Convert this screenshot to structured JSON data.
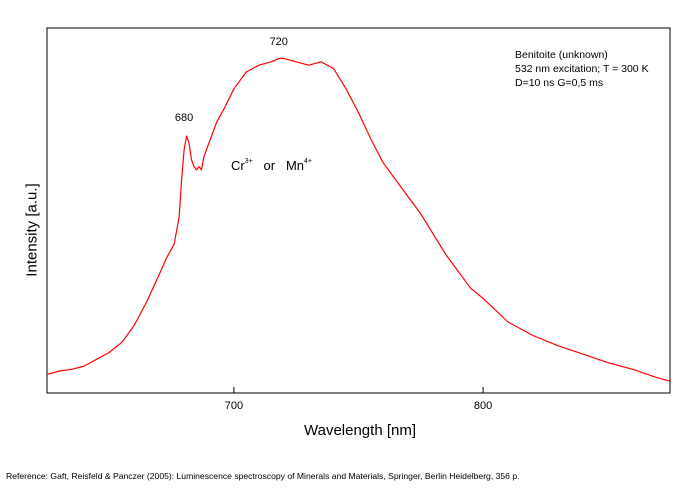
{
  "chart_data": {
    "type": "line",
    "title": "",
    "xlabel": "Wavelength [nm]",
    "ylabel": "Intensity [a.u.]",
    "xlim": [
      625,
      875
    ],
    "ylim": [
      0,
      1.08
    ],
    "x_ticks": [
      700,
      800
    ],
    "y_ticks": [],
    "grid": false,
    "legend": "none",
    "line_color": "#ff0000",
    "info_lines": [
      "Benitoite (unknown)",
      "532 nm excitation; T = 300 K",
      "D=10 ns G=0,5 ms"
    ],
    "species_label": {
      "a": "Cr",
      "a_sup": "3+",
      "or": "or",
      "b": "Mn",
      "b_sup": "4+"
    },
    "peak_labels": [
      {
        "text": "680",
        "x": 680,
        "y": 0.775
      },
      {
        "text": "720",
        "x": 718,
        "y": 1.0
      }
    ],
    "series": [
      {
        "x": [
          625,
          630,
          635,
          640,
          645,
          650,
          655,
          660,
          665,
          670,
          673,
          676,
          678,
          679,
          680,
          681,
          682,
          683,
          684,
          685,
          686,
          687,
          688,
          690,
          693,
          696,
          700,
          705,
          710,
          715,
          718,
          720,
          725,
          730,
          735,
          740,
          745,
          750,
          755,
          760,
          765,
          770,
          775,
          780,
          785,
          790,
          795,
          800,
          810,
          820,
          830,
          840,
          850,
          860,
          870,
          875
        ],
        "y": [
          0.055,
          0.065,
          0.07,
          0.08,
          0.1,
          0.12,
          0.15,
          0.2,
          0.27,
          0.35,
          0.4,
          0.44,
          0.52,
          0.63,
          0.72,
          0.76,
          0.74,
          0.69,
          0.67,
          0.66,
          0.67,
          0.66,
          0.7,
          0.74,
          0.8,
          0.84,
          0.9,
          0.95,
          0.97,
          0.98,
          0.99,
          0.99,
          0.98,
          0.97,
          0.98,
          0.96,
          0.9,
          0.83,
          0.75,
          0.68,
          0.63,
          0.58,
          0.53,
          0.47,
          0.41,
          0.36,
          0.31,
          0.28,
          0.21,
          0.17,
          0.14,
          0.115,
          0.09,
          0.07,
          0.045,
          0.035
        ]
      }
    ]
  },
  "reference": "Reference: Gaft, Reisfeld & Panczer (2005): Luminescence spectroscopy of Minerals and Materials, Springer, Berlin Heidelberg, 356 p."
}
